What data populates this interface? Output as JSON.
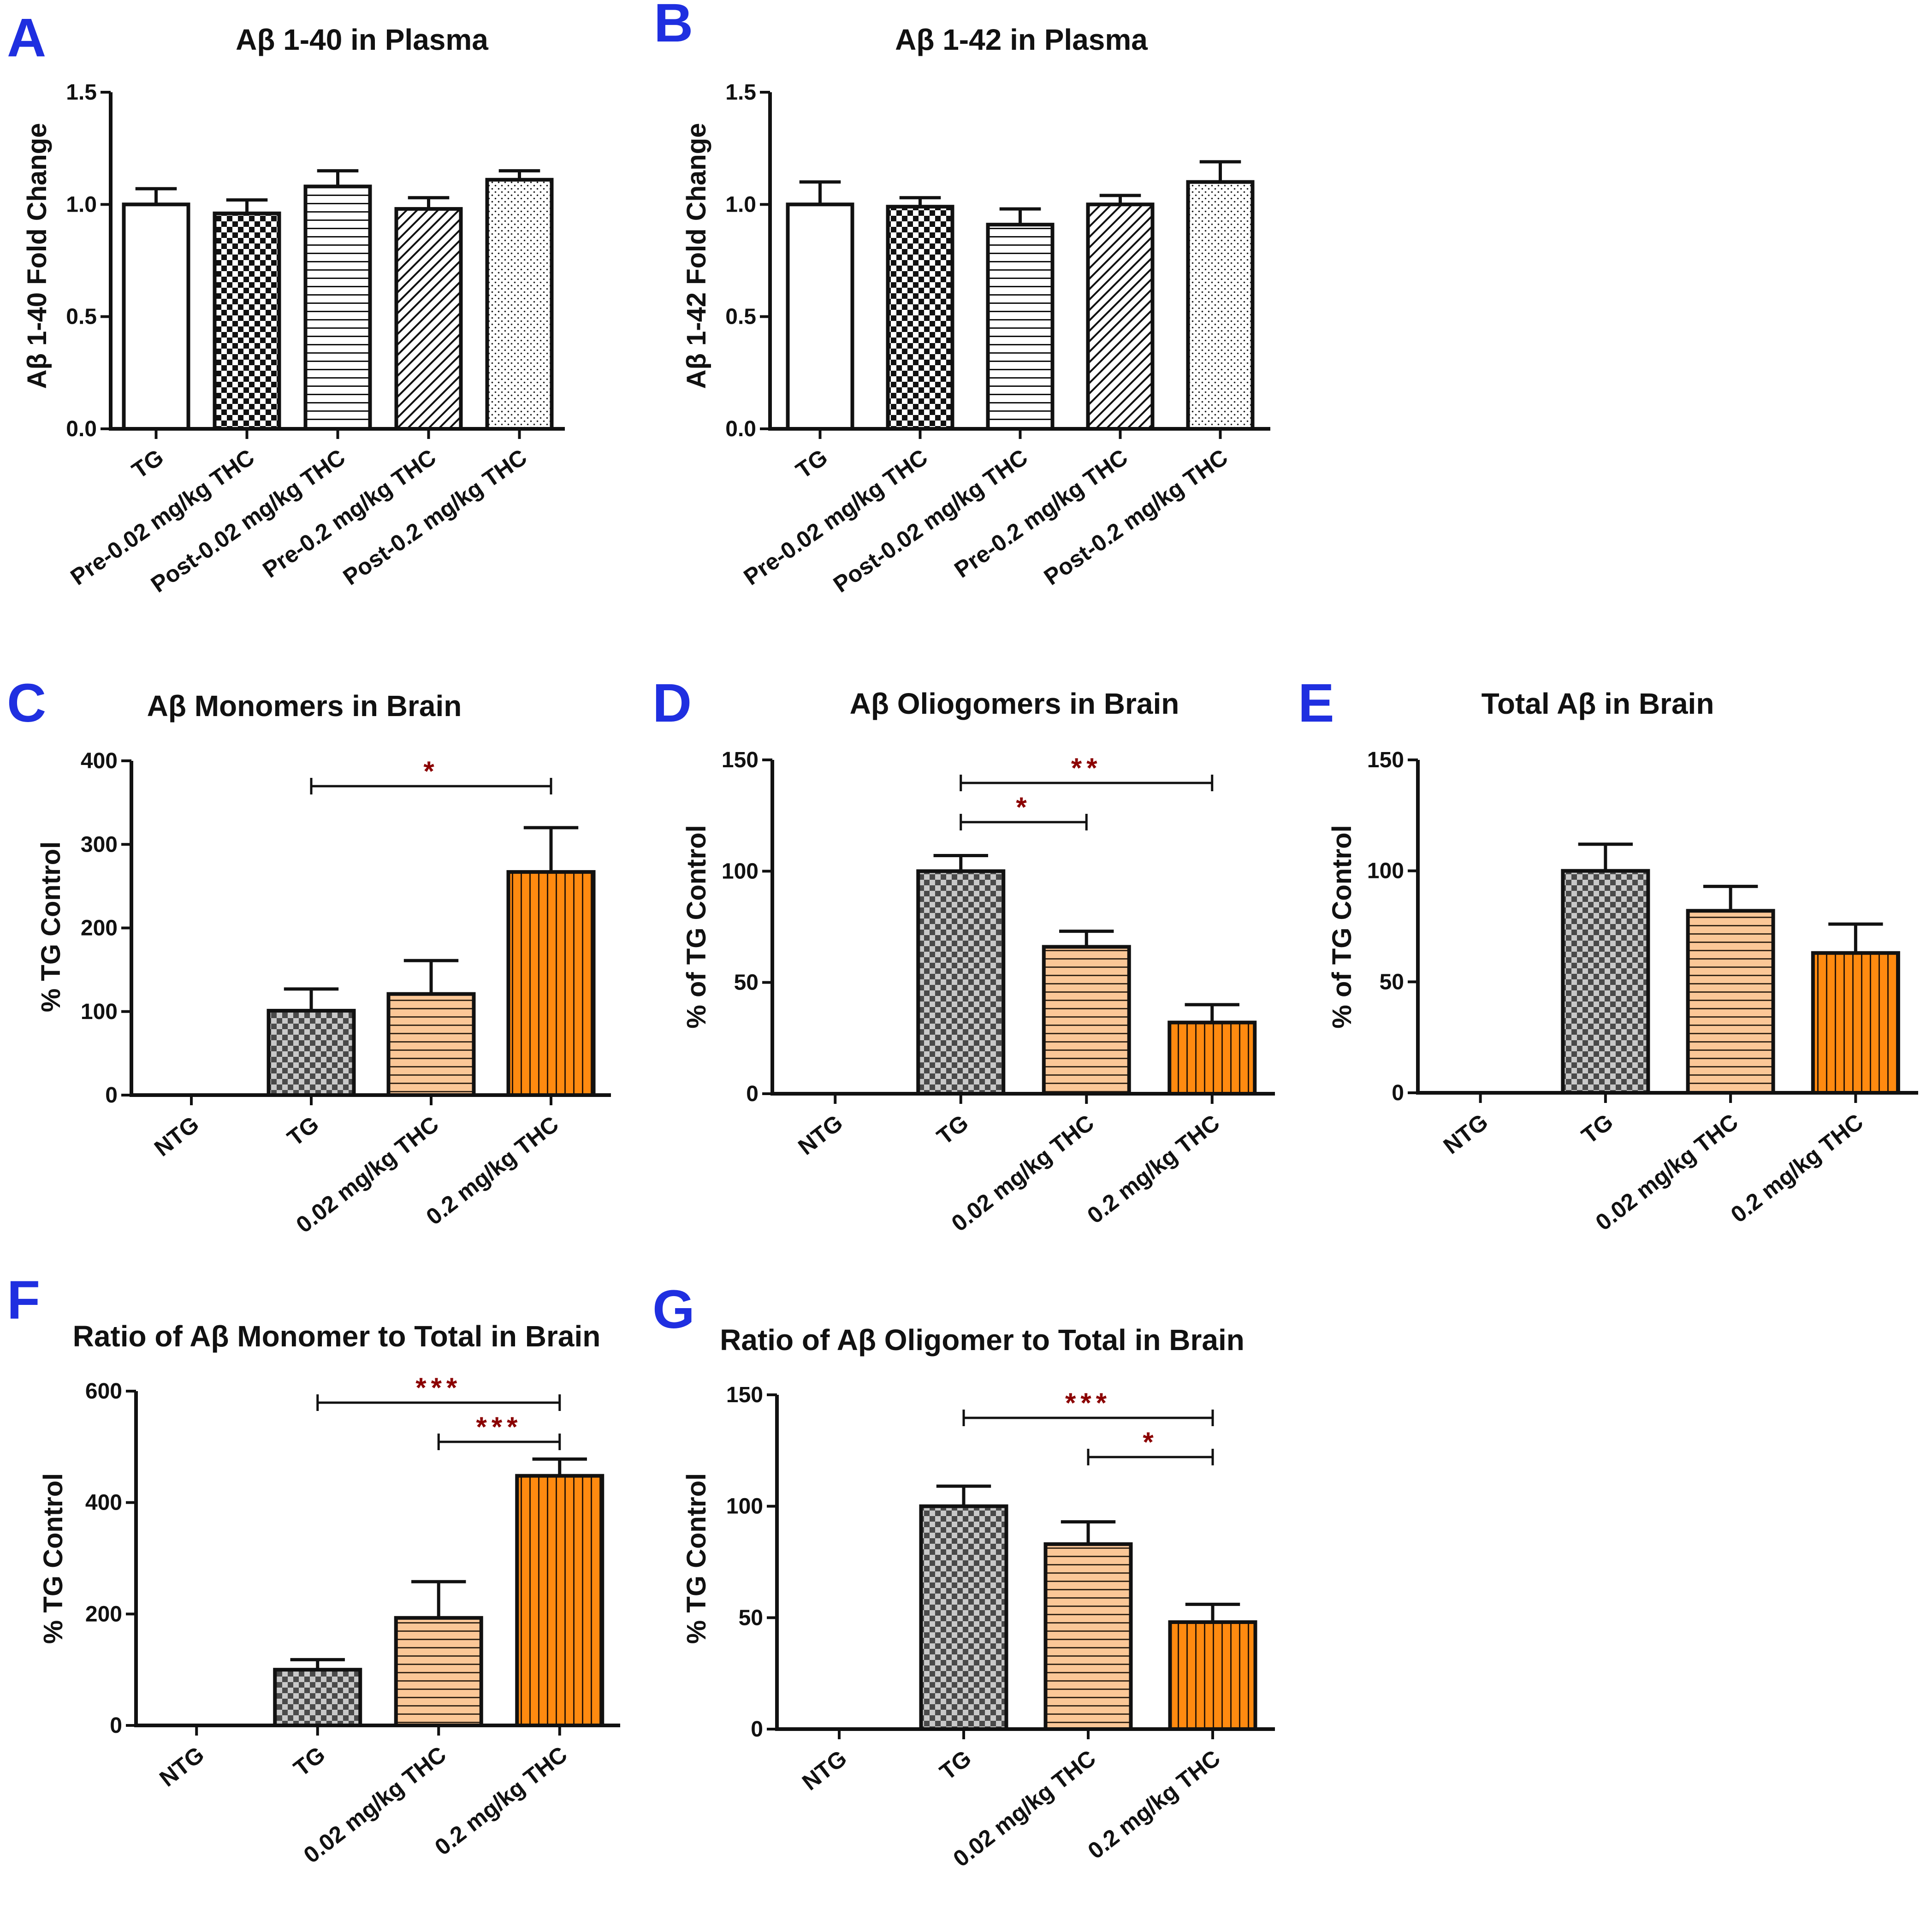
{
  "colors": {
    "panel_letter": "#1f2fe0",
    "significance": "#8b0000",
    "orange_light": "#fbc797",
    "orange_dark": "#ff8a10",
    "gray_check": "#7a7a7a",
    "black": "#111111"
  },
  "chart_data": [
    {
      "panel": "A",
      "type": "bar",
      "title": "Aβ 1-40 in Plasma",
      "ylabel": "Aβ 1-40 Fold Change",
      "xlabel": "",
      "ylim": [
        0,
        1.5
      ],
      "yticks": [
        "0.0",
        "0.5",
        "1.0",
        "1.5"
      ],
      "ytick_values": [
        0,
        0.5,
        1.0,
        1.5
      ],
      "categories": [
        "TG",
        "Pre-0.02 mg/kg THC",
        "Post-0.02 mg/kg THC",
        "Pre-0.2 mg/kg THC",
        "Post-0.2 mg/kg THC"
      ],
      "values": [
        1.0,
        0.96,
        1.08,
        0.98,
        1.11
      ],
      "errors": [
        0.07,
        0.06,
        0.07,
        0.05,
        0.04
      ],
      "patterns": [
        "white",
        "check-black",
        "hlines-black",
        "diag-black",
        "dots-black"
      ],
      "significance": []
    },
    {
      "panel": "B",
      "type": "bar",
      "title": "Aβ 1-42 in Plasma",
      "ylabel": "Aβ 1-42 Fold Change",
      "xlabel": "",
      "ylim": [
        0,
        1.5
      ],
      "yticks": [
        "0.0",
        "0.5",
        "1.0",
        "1.5"
      ],
      "ytick_values": [
        0,
        0.5,
        1.0,
        1.5
      ],
      "categories": [
        "TG",
        "Pre-0.02 mg/kg THC",
        "Post-0.02 mg/kg THC",
        "Pre-0.2 mg/kg THC",
        "Post-0.2 mg/kg THC"
      ],
      "values": [
        1.0,
        0.99,
        0.91,
        1.0,
        1.1
      ],
      "errors": [
        0.1,
        0.04,
        0.07,
        0.04,
        0.09
      ],
      "patterns": [
        "white",
        "check-black",
        "hlines-black",
        "diag-black",
        "dots-black"
      ],
      "significance": []
    },
    {
      "panel": "C",
      "type": "bar",
      "title": "Aβ Monomers in Brain",
      "ylabel": "% TG Control",
      "xlabel": "",
      "ylim": [
        0,
        400
      ],
      "yticks": [
        "0",
        "100",
        "200",
        "300",
        "400"
      ],
      "ytick_values": [
        0,
        100,
        200,
        300,
        400
      ],
      "categories": [
        "NTG",
        "TG",
        "0.02 mg/kg THC",
        "0.2 mg/kg THC"
      ],
      "values": [
        0,
        101,
        121,
        267
      ],
      "errors": [
        0,
        26,
        40,
        53
      ],
      "patterns": [
        "none",
        "check-gray",
        "hlines-orange",
        "vlines-orange"
      ],
      "significance": [
        {
          "from": 1,
          "to": 3,
          "stars": "*"
        }
      ]
    },
    {
      "panel": "D",
      "type": "bar",
      "title": "Aβ Oliogomers in Brain",
      "ylabel": "% of TG Control",
      "xlabel": "",
      "ylim": [
        0,
        150
      ],
      "yticks": [
        "0",
        "50",
        "100",
        "150"
      ],
      "ytick_values": [
        0,
        50,
        100,
        150
      ],
      "categories": [
        "NTG",
        "TG",
        "0.02 mg/kg THC",
        "0.2 mg/kg THC"
      ],
      "values": [
        0,
        100,
        66,
        32
      ],
      "errors": [
        0,
        7,
        7,
        8
      ],
      "patterns": [
        "none",
        "check-gray",
        "hlines-orange",
        "vlines-orange"
      ],
      "significance": [
        {
          "from": 1,
          "to": 3,
          "stars": "**"
        },
        {
          "from": 1,
          "to": 2,
          "stars": "*"
        }
      ]
    },
    {
      "panel": "E",
      "type": "bar",
      "title": "Total Aβ in Brain",
      "ylabel": "% of TG Control",
      "xlabel": "",
      "ylim": [
        0,
        150
      ],
      "yticks": [
        "0",
        "50",
        "100",
        "150"
      ],
      "ytick_values": [
        0,
        50,
        100,
        150
      ],
      "categories": [
        "NTG",
        "TG",
        "0.02 mg/kg THC",
        "0.2 mg/kg THC"
      ],
      "values": [
        0,
        100,
        82,
        63
      ],
      "errors": [
        0,
        12,
        11,
        13
      ],
      "patterns": [
        "none",
        "check-gray",
        "hlines-orange",
        "vlines-orange"
      ],
      "significance": []
    },
    {
      "panel": "F",
      "type": "bar",
      "title": "Ratio of Aβ Monomer to Total in Brain",
      "ylabel": "% TG Control",
      "xlabel": "",
      "ylim": [
        0,
        600
      ],
      "yticks": [
        "0",
        "200",
        "400",
        "600"
      ],
      "ytick_values": [
        0,
        200,
        400,
        600
      ],
      "categories": [
        "NTG",
        "TG",
        "0.02 mg/kg THC",
        "0.2 mg/kg THC"
      ],
      "values": [
        0,
        100,
        193,
        448
      ],
      "errors": [
        0,
        18,
        65,
        30
      ],
      "patterns": [
        "none",
        "check-gray",
        "hlines-orange",
        "vlines-orange"
      ],
      "significance": [
        {
          "from": 1,
          "to": 3,
          "stars": "***"
        },
        {
          "from": 2,
          "to": 3,
          "stars": "***"
        }
      ]
    },
    {
      "panel": "G",
      "type": "bar",
      "title": "Ratio of Aβ Oligomer to Total in Brain",
      "ylabel": "% TG Control",
      "xlabel": "",
      "ylim": [
        0,
        150
      ],
      "yticks": [
        "0",
        "50",
        "100",
        "150"
      ],
      "ytick_values": [
        0,
        50,
        100,
        150
      ],
      "categories": [
        "NTG",
        "TG",
        "0.02 mg/kg THC",
        "0.2 mg/kg THC"
      ],
      "values": [
        0,
        100,
        83,
        48
      ],
      "errors": [
        0,
        9,
        10,
        8
      ],
      "patterns": [
        "none",
        "check-gray",
        "hlines-orange",
        "vlines-orange"
      ],
      "significance": [
        {
          "from": 1,
          "to": 3,
          "stars": "***"
        },
        {
          "from": 2,
          "to": 3,
          "stars": "*"
        }
      ]
    }
  ]
}
